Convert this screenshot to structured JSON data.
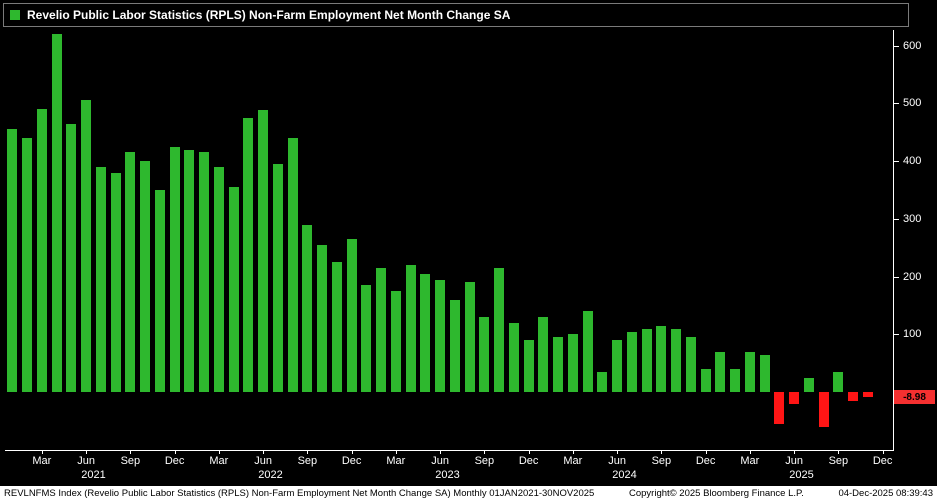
{
  "legend": {
    "label": "Revelio Public Labor Statistics (RPLS) Non-Farm Employment Net Month Change SA",
    "swatch_color": "#2eb82e"
  },
  "chart_data": {
    "type": "bar",
    "title": "Revelio Public Labor Statistics (RPLS) Non-Farm Employment Net Month Change SA",
    "xlabel": "",
    "ylabel": "",
    "ylim": [
      -100,
      620
    ],
    "yticks": [
      100,
      200,
      300,
      400,
      500,
      600
    ],
    "grid": false,
    "legend_position": "top-left",
    "positive_color": "#2eb82e",
    "negative_color": "#ff1515",
    "last_value_label": "-8.98",
    "months": [
      "Jan 2021",
      "Feb 2021",
      "Mar 2021",
      "Apr 2021",
      "May 2021",
      "Jun 2021",
      "Jul 2021",
      "Aug 2021",
      "Sep 2021",
      "Oct 2021",
      "Nov 2021",
      "Dec 2021",
      "Jan 2022",
      "Feb 2022",
      "Mar 2022",
      "Apr 2022",
      "May 2022",
      "Jun 2022",
      "Jul 2022",
      "Aug 2022",
      "Sep 2022",
      "Oct 2022",
      "Nov 2022",
      "Dec 2022",
      "Jan 2023",
      "Feb 2023",
      "Mar 2023",
      "Apr 2023",
      "May 2023",
      "Jun 2023",
      "Jul 2023",
      "Aug 2023",
      "Sep 2023",
      "Oct 2023",
      "Nov 2023",
      "Dec 2023",
      "Jan 2024",
      "Feb 2024",
      "Mar 2024",
      "Apr 2024",
      "May 2024",
      "Jun 2024",
      "Jul 2024",
      "Aug 2024",
      "Sep 2024",
      "Oct 2024",
      "Nov 2024",
      "Dec 2024",
      "Jan 2025",
      "Feb 2025",
      "Mar 2025",
      "Apr 2025",
      "May 2025",
      "Jun 2025",
      "Jul 2025",
      "Aug 2025",
      "Sep 2025",
      "Oct 2025",
      "Nov 2025"
    ],
    "values": [
      455,
      440,
      490,
      620,
      465,
      505,
      390,
      380,
      415,
      400,
      350,
      425,
      420,
      415,
      390,
      355,
      475,
      488,
      395,
      440,
      290,
      255,
      225,
      265,
      185,
      215,
      175,
      220,
      205,
      195,
      160,
      190,
      130,
      215,
      120,
      90,
      130,
      95,
      100,
      140,
      35,
      90,
      105,
      110,
      115,
      110,
      95,
      40,
      70,
      40,
      70,
      65,
      -55,
      -20,
      25,
      -60,
      35,
      -15,
      -8.98
    ],
    "xticks": [
      {
        "i": 2,
        "label": "Mar"
      },
      {
        "i": 5,
        "label": "Jun"
      },
      {
        "i": 8,
        "label": "Sep"
      },
      {
        "i": 11,
        "label": "Dec"
      },
      {
        "i": 14,
        "label": "Mar"
      },
      {
        "i": 17,
        "label": "Jun"
      },
      {
        "i": 20,
        "label": "Sep"
      },
      {
        "i": 23,
        "label": "Dec"
      },
      {
        "i": 26,
        "label": "Mar"
      },
      {
        "i": 29,
        "label": "Jun"
      },
      {
        "i": 32,
        "label": "Sep"
      },
      {
        "i": 35,
        "label": "Dec"
      },
      {
        "i": 38,
        "label": "Mar"
      },
      {
        "i": 41,
        "label": "Jun"
      },
      {
        "i": 44,
        "label": "Sep"
      },
      {
        "i": 47,
        "label": "Dec"
      },
      {
        "i": 50,
        "label": "Mar"
      },
      {
        "i": 53,
        "label": "Jun"
      },
      {
        "i": 56,
        "label": "Sep"
      },
      {
        "i": 59,
        "label": "Dec"
      }
    ],
    "year_labels": [
      {
        "i": 5.5,
        "label": "2021"
      },
      {
        "i": 17.5,
        "label": "2022"
      },
      {
        "i": 29.5,
        "label": "2023"
      },
      {
        "i": 41.5,
        "label": "2024"
      },
      {
        "i": 53.5,
        "label": "2025"
      }
    ]
  },
  "footer": {
    "left": "REVLNFMS Index (Revelio Public Labor Statistics (RPLS) Non-Farm Employment Net Month Change SA) Monthly 01JAN2021-30NOV2025",
    "copyright": "Copyright© 2025 Bloomberg Finance L.P.",
    "datetime": "04-Dec-2025 08:39:43"
  }
}
